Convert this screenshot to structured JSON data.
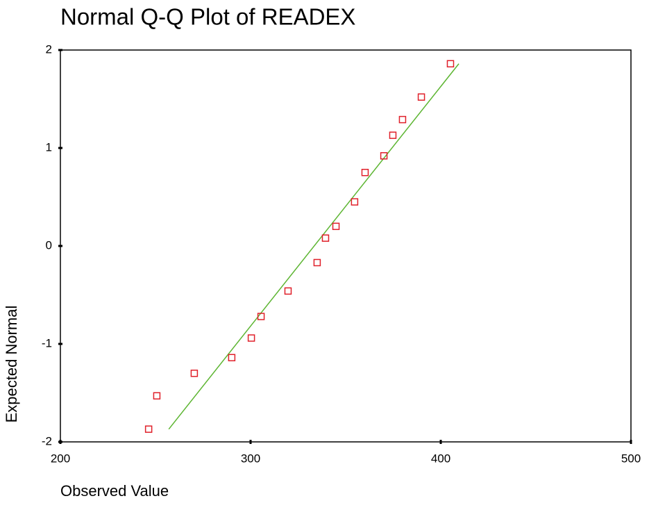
{
  "chart_data": {
    "type": "scatter",
    "title": "Normal Q-Q Plot of READEX",
    "x_label": "Observed Value",
    "y_label": "Expected Normal",
    "x": [
      246.4,
      250.7,
      270.4,
      290.1,
      300.4,
      305.5,
      319.7,
      335.0,
      339.4,
      344.9,
      354.7,
      360.2,
      370.1,
      374.8,
      379.9,
      389.8,
      405.1
    ],
    "values": [
      -1.87,
      -1.53,
      -1.3,
      -1.14,
      -0.94,
      -0.72,
      -0.46,
      -0.17,
      0.08,
      0.2,
      0.45,
      0.75,
      0.92,
      1.13,
      1.29,
      1.52,
      1.86
    ],
    "color": "#e0202a",
    "reference_line": {
      "x": [
        257.0,
        409.5
      ],
      "y": [
        -1.87,
        1.86
      ],
      "color": "#5cb531"
    },
    "xlim": [
      200,
      500
    ],
    "xticks": [
      200,
      300,
      400,
      500
    ],
    "ylim": [
      -2,
      2
    ],
    "yticks": [
      -2,
      -1,
      0,
      1,
      2
    ],
    "grid": false
  }
}
